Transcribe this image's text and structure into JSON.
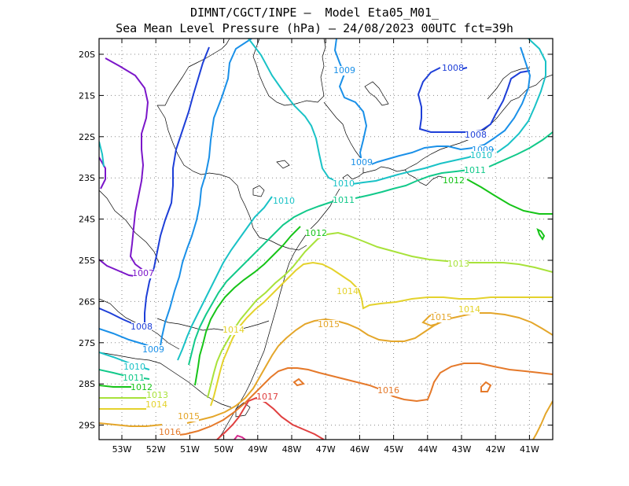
{
  "title": {
    "line1": "DIMNT/CGCT/INPE –  Model Eta05_M01_",
    "line2": "Sea Mean Level Pressure (hPa) – 24/08/2023 00UTC fct=39h"
  },
  "axes": {
    "lat_labels": [
      "20S",
      "21S",
      "22S",
      "23S",
      "24S",
      "25S",
      "26S",
      "27S",
      "28S",
      "29S"
    ],
    "lon_labels": [
      "53W",
      "52W",
      "51W",
      "50W",
      "49W",
      "48W",
      "47W",
      "46W",
      "45W",
      "44W",
      "43W",
      "42W",
      "41W"
    ],
    "grid": "dotted"
  },
  "colors": {
    "1007": "#7b16c9",
    "1008": "#1e3fd8",
    "1009": "#1a90e8",
    "1010": "#19c2c6",
    "1011": "#12c98a",
    "1012": "#16c418",
    "1013": "#a8e23a",
    "1014": "#e4d22c",
    "1015": "#e4a62a",
    "1016": "#e5792a",
    "1017": "#e04040",
    "1018": "#d62b8e"
  },
  "contour_labels": [
    {
      "text": "1009",
      "level": "1009"
    },
    {
      "text": "1008",
      "level": "1008"
    },
    {
      "text": "1008",
      "level": "1008"
    },
    {
      "text": "1009",
      "level": "1009"
    },
    {
      "text": "1010",
      "level": "1010"
    },
    {
      "text": "1011",
      "level": "1011"
    },
    {
      "text": "1009",
      "level": "1009"
    },
    {
      "text": "1010",
      "level": "1010"
    },
    {
      "text": "1012",
      "level": "1012"
    },
    {
      "text": "1010",
      "level": "1010"
    },
    {
      "text": "1011",
      "level": "1011"
    },
    {
      "text": "1012",
      "level": "1012"
    },
    {
      "text": "1013",
      "level": "1013"
    },
    {
      "text": "1007",
      "level": "1007"
    },
    {
      "text": "1014",
      "level": "1014"
    },
    {
      "text": "1014",
      "level": "1014"
    },
    {
      "text": "1008",
      "level": "1008"
    },
    {
      "text": "1015",
      "level": "1015"
    },
    {
      "text": "1015",
      "level": "1015"
    },
    {
      "text": "1014",
      "level": "1014"
    },
    {
      "text": "1009",
      "level": "1009"
    },
    {
      "text": "1010",
      "level": "1010"
    },
    {
      "text": "1011",
      "level": "1011"
    },
    {
      "text": "1012",
      "level": "1012"
    },
    {
      "text": "1013",
      "level": "1013"
    },
    {
      "text": "1014",
      "level": "1014"
    },
    {
      "text": "1016",
      "level": "1016"
    },
    {
      "text": "1017",
      "level": "1017"
    },
    {
      "text": "1015",
      "level": "1015"
    },
    {
      "text": "1016",
      "level": "1016"
    }
  ]
}
